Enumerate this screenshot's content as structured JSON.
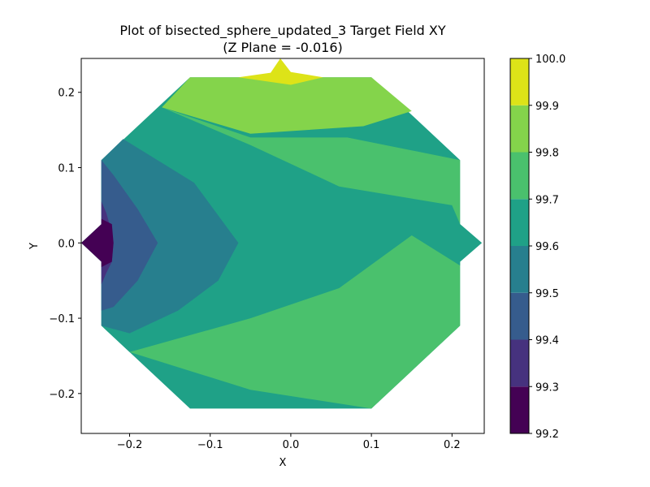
{
  "chart_data": {
    "type": "contourf",
    "title": "Plot of bisected_sphere_updated_3 Target Field XY",
    "subtitle": "(Z Plane = -0.016)",
    "xlabel": "X",
    "ylabel": "Y",
    "xlim": [
      -0.26,
      0.24
    ],
    "ylim": [
      -0.253,
      0.245
    ],
    "x_ticks": [
      {
        "value": -0.2,
        "label": "−0.2"
      },
      {
        "value": -0.1,
        "label": "−0.1"
      },
      {
        "value": 0.0,
        "label": "0.0"
      },
      {
        "value": 0.1,
        "label": "0.1"
      },
      {
        "value": 0.2,
        "label": "0.2"
      }
    ],
    "y_ticks": [
      {
        "value": -0.2,
        "label": "−0.2"
      },
      {
        "value": -0.1,
        "label": "−0.1"
      },
      {
        "value": 0.0,
        "label": "0.0"
      },
      {
        "value": 0.1,
        "label": "0.1"
      },
      {
        "value": 0.2,
        "label": "0.2"
      }
    ],
    "colorbar": {
      "levels": [
        99.2,
        99.3,
        99.4,
        99.5,
        99.6,
        99.7,
        99.8,
        99.9,
        100.0
      ],
      "tick_labels": [
        "99.2",
        "99.3",
        "99.4",
        "99.5",
        "99.6",
        "99.7",
        "99.8",
        "99.9",
        "100.0"
      ],
      "colors": [
        "#440154",
        "#46327e",
        "#365c8d",
        "#277f8e",
        "#1fa187",
        "#4ac16d",
        "#84d44b",
        "#dde318"
      ]
    },
    "domain_outline": [
      [
        -0.125,
        0.22
      ],
      [
        -0.013,
        0.22
      ],
      [
        -0.013,
        0.245
      ],
      [
        -0.013,
        0.22
      ],
      [
        0.1,
        0.22
      ],
      [
        0.21,
        0.11
      ],
      [
        0.21,
        0.025
      ],
      [
        0.237,
        0.0
      ],
      [
        0.21,
        -0.025
      ],
      [
        0.21,
        -0.11
      ],
      [
        0.1,
        -0.22
      ],
      [
        -0.013,
        -0.22
      ],
      [
        -0.013,
        -0.253
      ],
      [
        -0.013,
        -0.22
      ],
      [
        -0.125,
        -0.22
      ],
      [
        -0.235,
        -0.11
      ],
      [
        -0.235,
        -0.025
      ],
      [
        -0.26,
        0.0
      ],
      [
        -0.235,
        0.025
      ],
      [
        -0.235,
        0.11
      ]
    ],
    "regions": [
      {
        "level_index": 0,
        "range": [
          99.2,
          99.3
        ],
        "polygon": [
          [
            -0.235,
            0.025
          ],
          [
            -0.26,
            0.0
          ],
          [
            -0.235,
            -0.025
          ],
          [
            -0.235,
            -0.032
          ],
          [
            -0.222,
            -0.025
          ],
          [
            -0.22,
            0.0
          ],
          [
            -0.222,
            0.025
          ],
          [
            -0.235,
            0.032
          ]
        ]
      },
      {
        "level_index": 1,
        "range": [
          99.3,
          99.4
        ],
        "polygon": [
          [
            -0.235,
            0.055
          ],
          [
            -0.229,
            0.04
          ],
          [
            -0.225,
            0.025
          ],
          [
            -0.22,
            0.0
          ],
          [
            -0.222,
            -0.025
          ],
          [
            -0.229,
            -0.04
          ],
          [
            -0.235,
            -0.055
          ]
        ]
      },
      {
        "level_index": 2,
        "range": [
          99.4,
          99.5
        ],
        "polygon": [
          [
            -0.235,
            0.11
          ],
          [
            -0.22,
            0.09
          ],
          [
            -0.19,
            0.045
          ],
          [
            -0.165,
            0.0
          ],
          [
            -0.19,
            -0.05
          ],
          [
            -0.22,
            -0.085
          ],
          [
            -0.235,
            -0.09
          ]
        ]
      },
      {
        "level_index": 3,
        "range": [
          99.5,
          99.6
        ],
        "polygon": [
          [
            -0.235,
            0.11
          ],
          [
            -0.208,
            0.138
          ],
          [
            -0.12,
            0.08
          ],
          [
            -0.065,
            0.0
          ],
          [
            -0.09,
            -0.05
          ],
          [
            -0.14,
            -0.09
          ],
          [
            -0.2,
            -0.12
          ],
          [
            -0.235,
            -0.11
          ]
        ]
      },
      {
        "level_index": 4,
        "range": [
          99.6,
          99.7
        ],
        "polygon": [
          [
            -0.235,
            0.11
          ],
          [
            -0.16,
            0.18
          ],
          [
            -0.05,
            0.13
          ],
          [
            0.06,
            0.075
          ],
          [
            0.2,
            0.05
          ],
          [
            0.21,
            0.025
          ],
          [
            0.237,
            0.0
          ],
          [
            0.21,
            -0.025
          ],
          [
            0.21,
            -0.03
          ],
          [
            0.15,
            0.01
          ],
          [
            0.06,
            -0.06
          ],
          [
            -0.05,
            -0.1
          ],
          [
            -0.2,
            -0.145
          ],
          [
            -0.235,
            -0.11
          ]
        ]
      },
      {
        "level_index": 5,
        "range": [
          99.7,
          99.8
        ],
        "polygon": [
          [
            -0.16,
            0.18
          ],
          [
            -0.05,
            0.14
          ],
          [
            0.07,
            0.14
          ],
          [
            0.21,
            0.11
          ],
          [
            0.21,
            -0.11
          ],
          [
            0.1,
            -0.22
          ],
          [
            -0.05,
            -0.195
          ],
          [
            -0.2,
            -0.145
          ]
        ]
      },
      {
        "level_index": 6,
        "range": [
          99.8,
          99.9
        ],
        "polygon": [
          [
            -0.125,
            0.22
          ],
          [
            0.1,
            0.22
          ],
          [
            0.15,
            0.175
          ],
          [
            0.09,
            0.155
          ],
          [
            -0.05,
            0.145
          ],
          [
            -0.16,
            0.18
          ]
        ]
      },
      {
        "level_index": 7,
        "range": [
          99.9,
          100.0
        ],
        "polygon": [
          [
            -0.065,
            0.22
          ],
          [
            0.0,
            0.21
          ],
          [
            0.04,
            0.22
          ],
          [
            0.0,
            0.227
          ],
          [
            -0.013,
            0.245
          ],
          [
            -0.025,
            0.226
          ]
        ]
      }
    ]
  }
}
